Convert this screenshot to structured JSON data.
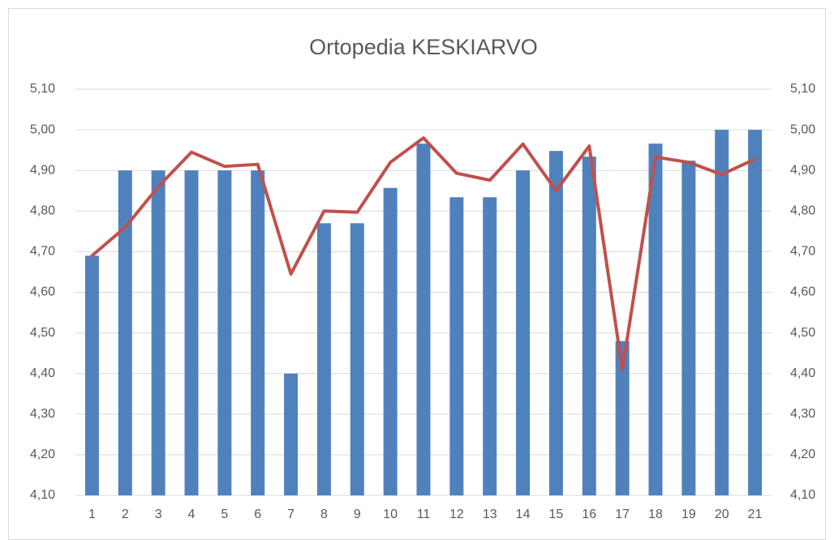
{
  "chart_data": {
    "type": "bar_line",
    "title": "Ortopedia KESKIARVO",
    "categories": [
      "1",
      "2",
      "3",
      "4",
      "5",
      "6",
      "7",
      "8",
      "9",
      "10",
      "11",
      "12",
      "13",
      "14",
      "15",
      "16",
      "17",
      "18",
      "19",
      "20",
      "21"
    ],
    "series": [
      {
        "type": "bar",
        "color": "#4f81bd",
        "values": [
          4.69,
          4.9,
          4.9,
          4.9,
          4.9,
          4.9,
          4.4,
          4.77,
          4.77,
          4.857,
          4.966,
          4.834,
          4.834,
          4.9,
          4.948,
          4.934,
          4.48,
          4.966,
          4.924,
          5.0,
          5.0
        ]
      },
      {
        "type": "line",
        "color": "#c0504d",
        "axis": "y2",
        "values": [
          4.69,
          4.76,
          4.86,
          4.945,
          4.91,
          4.915,
          4.645,
          4.8,
          4.797,
          4.92,
          4.98,
          4.893,
          4.876,
          4.965,
          4.85,
          4.96,
          4.41,
          4.933,
          4.92,
          4.89,
          4.928
        ]
      }
    ],
    "ylim": [
      4.1,
      5.1
    ],
    "yticks": [
      {
        "value": 4.1,
        "label": "4,10"
      },
      {
        "value": 4.2,
        "label": "4,20"
      },
      {
        "value": 4.3,
        "label": "4,30"
      },
      {
        "value": 4.4,
        "label": "4,40"
      },
      {
        "value": 4.5,
        "label": "4,50"
      },
      {
        "value": 4.6,
        "label": "4,60"
      },
      {
        "value": 4.7,
        "label": "4,70"
      },
      {
        "value": 4.8,
        "label": "4,80"
      },
      {
        "value": 4.9,
        "label": "4,90"
      },
      {
        "value": 5.0,
        "label": "5,00"
      },
      {
        "value": 5.1,
        "label": "5,10"
      }
    ],
    "y2lim": [
      4.1,
      5.1
    ],
    "y2ticks": [
      {
        "value": 4.1,
        "label": "4,10"
      },
      {
        "value": 4.2,
        "label": "4,20"
      },
      {
        "value": 4.3,
        "label": "4,30"
      },
      {
        "value": 4.4,
        "label": "4,40"
      },
      {
        "value": 4.5,
        "label": "4,50"
      },
      {
        "value": 4.6,
        "label": "4,60"
      },
      {
        "value": 4.7,
        "label": "4,70"
      },
      {
        "value": 4.8,
        "label": "4,80"
      },
      {
        "value": 4.9,
        "label": "4,90"
      },
      {
        "value": 5.0,
        "label": "5,00"
      },
      {
        "value": 5.1,
        "label": "5,10"
      }
    ],
    "grid": true
  }
}
